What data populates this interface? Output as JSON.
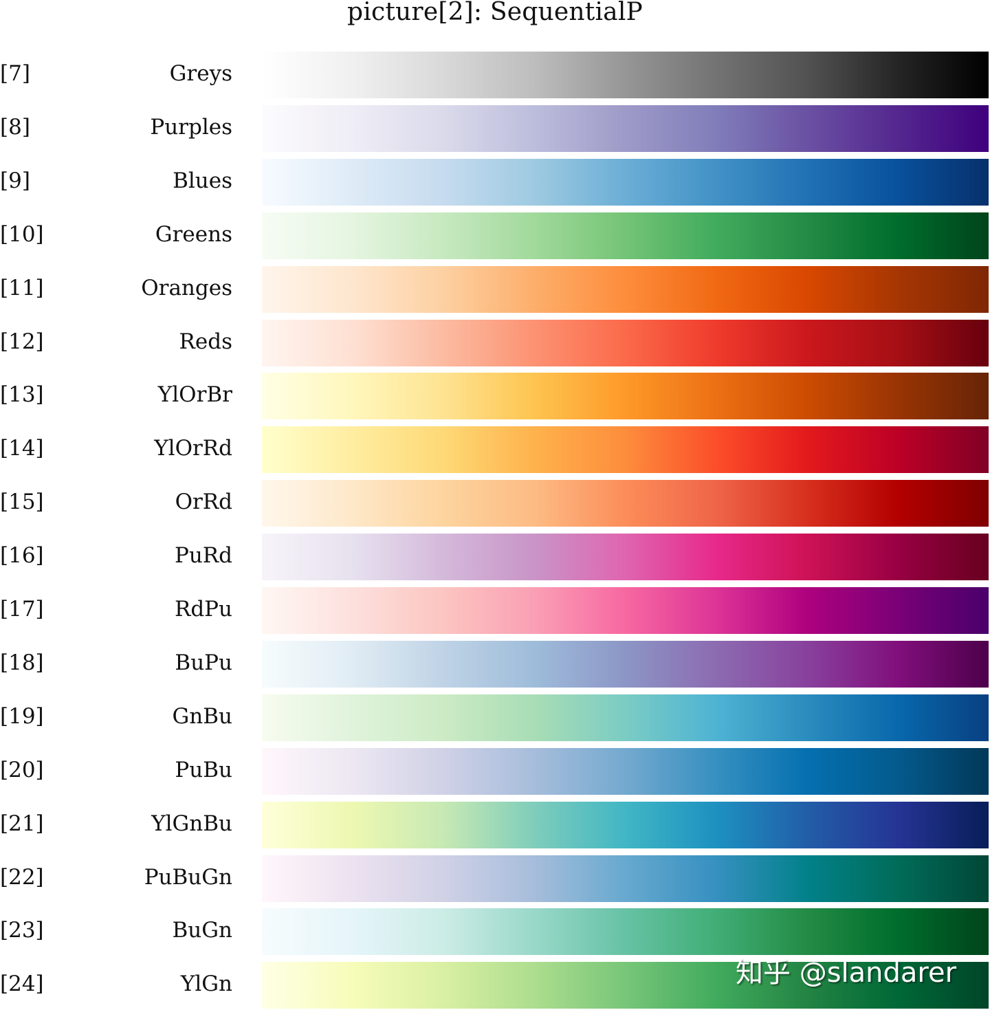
{
  "title": "picture[2]:  SequentialP",
  "watermark": "知乎 @slandarer",
  "chart_data": {
    "type": "heatmap",
    "title": "picture[2]:  SequentialP",
    "description": "Horizontal colorbar strips of sequential colormaps, each labeled with an index and name",
    "colormaps": [
      {
        "index": "[7]",
        "name": "Greys",
        "colors": [
          "#ffffff",
          "#f0f0f0",
          "#d9d9d9",
          "#bdbdbd",
          "#969696",
          "#737373",
          "#525252",
          "#252525",
          "#000000"
        ]
      },
      {
        "index": "[8]",
        "name": "Purples",
        "colors": [
          "#fcfbfd",
          "#efedf5",
          "#dadaeb",
          "#bcbddc",
          "#9e9ac8",
          "#807dba",
          "#6a51a3",
          "#54278f",
          "#3f007d"
        ]
      },
      {
        "index": "[9]",
        "name": "Blues",
        "colors": [
          "#f7fbff",
          "#deebf7",
          "#c6dbef",
          "#9ecae1",
          "#6baed6",
          "#4292c6",
          "#2171b5",
          "#08519c",
          "#08306b"
        ]
      },
      {
        "index": "[10]",
        "name": "Greens",
        "colors": [
          "#f7fcf5",
          "#e5f5e0",
          "#c7e9c0",
          "#a1d99b",
          "#74c476",
          "#41ab5d",
          "#238b45",
          "#006d2c",
          "#00441b"
        ]
      },
      {
        "index": "[11]",
        "name": "Oranges",
        "colors": [
          "#fff5eb",
          "#fee6ce",
          "#fdd0a2",
          "#fdae6b",
          "#fd8d3c",
          "#f16913",
          "#d94801",
          "#a63603",
          "#7f2704"
        ]
      },
      {
        "index": "[12]",
        "name": "Reds",
        "colors": [
          "#fff5f0",
          "#fee0d2",
          "#fcbba1",
          "#fc9272",
          "#fb6a4a",
          "#ef3b2c",
          "#cb181d",
          "#a50f15",
          "#67000d"
        ]
      },
      {
        "index": "[13]",
        "name": "YlOrBr",
        "colors": [
          "#ffffe5",
          "#fff7bc",
          "#fee391",
          "#fec44f",
          "#fe9929",
          "#ec7014",
          "#cc4c02",
          "#993404",
          "#662506"
        ]
      },
      {
        "index": "[14]",
        "name": "YlOrRd",
        "colors": [
          "#ffffcc",
          "#ffeda0",
          "#fed976",
          "#feb24c",
          "#fd8d3c",
          "#fc4e2a",
          "#e31a1c",
          "#bd0026",
          "#800026"
        ]
      },
      {
        "index": "[15]",
        "name": "OrRd",
        "colors": [
          "#fff7ec",
          "#fee8c8",
          "#fdd49e",
          "#fdbb84",
          "#fc8d59",
          "#ef6548",
          "#d7301f",
          "#b30000",
          "#7f0000"
        ]
      },
      {
        "index": "[16]",
        "name": "PuRd",
        "colors": [
          "#f7f4f9",
          "#e7e1ef",
          "#d4b9da",
          "#c994c7",
          "#df65b0",
          "#e7298a",
          "#ce1256",
          "#980043",
          "#67001f"
        ]
      },
      {
        "index": "[17]",
        "name": "RdPu",
        "colors": [
          "#fff7f3",
          "#fde0dd",
          "#fcc5c0",
          "#fa9fb5",
          "#f768a1",
          "#dd3497",
          "#ae017e",
          "#7a0177",
          "#49006a"
        ]
      },
      {
        "index": "[18]",
        "name": "BuPu",
        "colors": [
          "#f7fcfd",
          "#e0ecf4",
          "#bfd3e6",
          "#9ebcda",
          "#8c96c6",
          "#8c6bb1",
          "#88419d",
          "#810f7c",
          "#4d004b"
        ]
      },
      {
        "index": "[19]",
        "name": "GnBu",
        "colors": [
          "#f7fcf0",
          "#e0f3db",
          "#ccebc5",
          "#a8ddb5",
          "#7bccc4",
          "#4eb3d3",
          "#2b8cbe",
          "#0868ac",
          "#084081"
        ]
      },
      {
        "index": "[20]",
        "name": "PuBu",
        "colors": [
          "#fff7fb",
          "#ece7f2",
          "#d0d1e6",
          "#a6bddb",
          "#74a9cf",
          "#3690c0",
          "#0570b0",
          "#045a8d",
          "#023858"
        ]
      },
      {
        "index": "[21]",
        "name": "YlGnBu",
        "colors": [
          "#ffffd9",
          "#edf8b1",
          "#c7e9b4",
          "#7fcdbb",
          "#41b6c4",
          "#1d91c0",
          "#225ea8",
          "#253494",
          "#081d58"
        ]
      },
      {
        "index": "[22]",
        "name": "PuBuGn",
        "colors": [
          "#fff7fb",
          "#ece2f0",
          "#d0d1e6",
          "#a6bddb",
          "#67a9cf",
          "#3690c0",
          "#02818a",
          "#016c59",
          "#014636"
        ]
      },
      {
        "index": "[23]",
        "name": "BuGn",
        "colors": [
          "#f7fcfd",
          "#e5f5f9",
          "#ccece6",
          "#99d8c9",
          "#66c2a4",
          "#41ae76",
          "#238b45",
          "#006d2c",
          "#00441b"
        ]
      },
      {
        "index": "[24]",
        "name": "YlGn",
        "colors": [
          "#ffffe5",
          "#f7fcb9",
          "#d9f0a3",
          "#addd8e",
          "#78c679",
          "#41ab5d",
          "#238443",
          "#006837",
          "#004529"
        ]
      }
    ]
  }
}
